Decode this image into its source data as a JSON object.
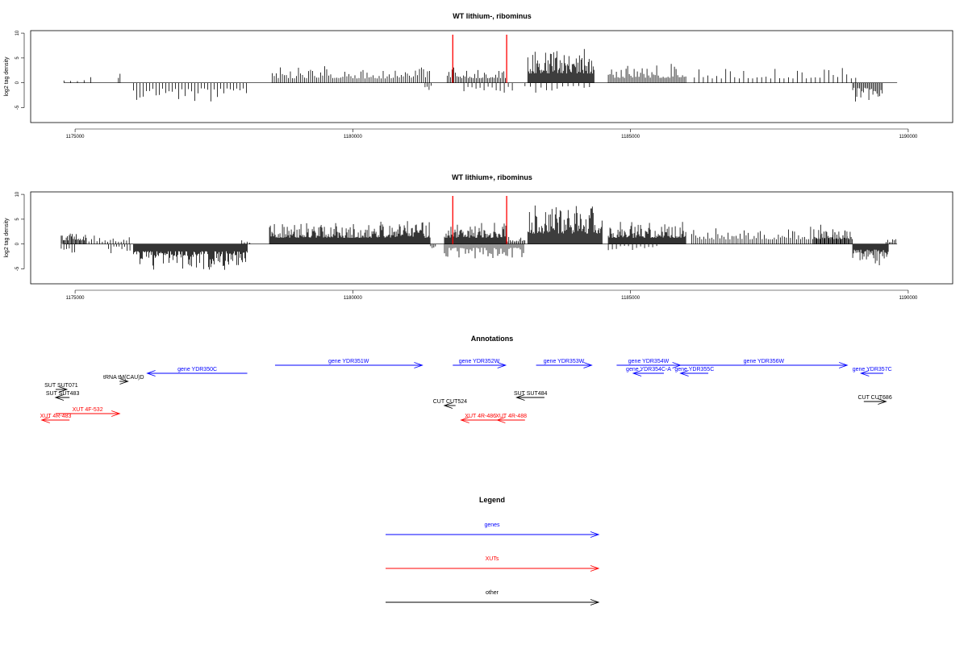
{
  "colors": {
    "genes": "#0000ff",
    "xuts": "#ff0000",
    "other": "#000000",
    "highlight": "#ff0000"
  },
  "chart_data": [
    {
      "type": "bar",
      "title": "WT lithium-, ribominus",
      "xlabel": "",
      "ylabel": "log2 tag density",
      "xlim": [
        1174200,
        1190800
      ],
      "ylim": [
        -8,
        10.5
      ],
      "x_ticks": [
        1175000,
        1180000,
        1185000,
        1190000
      ],
      "x_tick_labels": [
        "1175000",
        "1180000",
        "1185000",
        "1190000"
      ],
      "y_ticks": [
        -5,
        0,
        5,
        10
      ],
      "y_tick_labels": [
        "-5",
        "0",
        "5",
        "10"
      ],
      "highlight_lines_x": [
        1181800,
        1182770
      ],
      "segments": [
        {
          "start": 1174800,
          "end": 1175350,
          "strand": "+",
          "amp": 1.3,
          "density": 0.012
        },
        {
          "start": 1175780,
          "end": 1175830,
          "strand": "+",
          "amp": 3.8,
          "density": 0.05
        },
        {
          "start": 1176050,
          "end": 1178100,
          "strand": "-",
          "amp": 4.5,
          "density": 0.025
        },
        {
          "start": 1178550,
          "end": 1181400,
          "strand": "+",
          "amp": 3.5,
          "density": 0.04
        },
        {
          "start": 1181300,
          "end": 1181420,
          "strand": "-",
          "amp": 2.2,
          "density": 0.04
        },
        {
          "start": 1181700,
          "end": 1182750,
          "strand": "+",
          "amp": 3.8,
          "density": 0.05
        },
        {
          "start": 1182000,
          "end": 1182900,
          "strand": "-",
          "amp": 2.5,
          "density": 0.02
        },
        {
          "start": 1183150,
          "end": 1184350,
          "strand": "+",
          "amp": 7.5,
          "density": 0.16
        },
        {
          "start": 1183100,
          "end": 1184300,
          "strand": "-",
          "amp": 2.5,
          "density": 0.015
        },
        {
          "start": 1184600,
          "end": 1186000,
          "strand": "+",
          "amp": 4.0,
          "density": 0.05
        },
        {
          "start": 1186150,
          "end": 1189100,
          "strand": "+",
          "amp": 3.5,
          "density": 0.018
        },
        {
          "start": 1189000,
          "end": 1189550,
          "strand": "-",
          "amp": 4.0,
          "density": 0.06
        }
      ]
    },
    {
      "type": "bar",
      "title": "WT lithium+, ribominus",
      "xlabel": "",
      "ylabel": "log2 tag density",
      "xlim": [
        1174200,
        1190800
      ],
      "ylim": [
        -8,
        10.5
      ],
      "x_ticks": [
        1175000,
        1180000,
        1185000,
        1190000
      ],
      "x_tick_labels": [
        "1175000",
        "1180000",
        "1185000",
        "1190000"
      ],
      "y_ticks": [
        -5,
        0,
        5,
        10
      ],
      "y_tick_labels": [
        "-5",
        "0",
        "5",
        "10"
      ],
      "highlight_lines_x": [
        1181800,
        1182770
      ],
      "segments": [
        {
          "start": 1174750,
          "end": 1175200,
          "strand": "+",
          "amp": 3.0,
          "density": 0.08
        },
        {
          "start": 1174750,
          "end": 1175000,
          "strand": "-",
          "amp": 3.5,
          "density": 0.03
        },
        {
          "start": 1175200,
          "end": 1176000,
          "strand": "+",
          "amp": 1.8,
          "density": 0.03
        },
        {
          "start": 1175600,
          "end": 1176000,
          "strand": "-",
          "amp": 2.0,
          "density": 0.03
        },
        {
          "start": 1176050,
          "end": 1178100,
          "strand": "-",
          "amp": 5.8,
          "density": 0.25
        },
        {
          "start": 1178000,
          "end": 1178150,
          "strand": "+",
          "amp": 1.0,
          "density": 0.03
        },
        {
          "start": 1178500,
          "end": 1181400,
          "strand": "+",
          "amp": 5.0,
          "density": 0.22
        },
        {
          "start": 1181400,
          "end": 1181500,
          "strand": "-",
          "amp": 1.5,
          "density": 0.05
        },
        {
          "start": 1181650,
          "end": 1182760,
          "strand": "+",
          "amp": 5.0,
          "density": 0.15
        },
        {
          "start": 1181650,
          "end": 1183100,
          "strand": "-",
          "amp": 3.0,
          "density": 0.05
        },
        {
          "start": 1182760,
          "end": 1183100,
          "strand": "+",
          "amp": 2.0,
          "density": 0.06
        },
        {
          "start": 1183150,
          "end": 1184500,
          "strand": "+",
          "amp": 8.5,
          "density": 0.3
        },
        {
          "start": 1184600,
          "end": 1186000,
          "strand": "+",
          "amp": 5.0,
          "density": 0.2
        },
        {
          "start": 1184600,
          "end": 1185500,
          "strand": "-",
          "amp": 1.5,
          "density": 0.02
        },
        {
          "start": 1186100,
          "end": 1188900,
          "strand": "+",
          "amp": 3.8,
          "density": 0.04
        },
        {
          "start": 1188300,
          "end": 1189000,
          "strand": "+",
          "amp": 4.0,
          "density": 0.08
        },
        {
          "start": 1189000,
          "end": 1189650,
          "strand": "-",
          "amp": 4.5,
          "density": 0.2
        },
        {
          "start": 1189600,
          "end": 1189800,
          "strand": "+",
          "amp": 1.5,
          "density": 0.05
        }
      ]
    }
  ],
  "annotations": {
    "title": "Annotations",
    "features": [
      {
        "label": "gene YDR350C",
        "start": 1176300,
        "end": 1178100,
        "strand": "-",
        "row": 1,
        "class": "genes"
      },
      {
        "label": "gene YDR351W",
        "start": 1178600,
        "end": 1181250,
        "strand": "+",
        "row": 0,
        "class": "genes"
      },
      {
        "label": "gene YDR352W",
        "start": 1181800,
        "end": 1182750,
        "strand": "+",
        "row": 0,
        "class": "genes"
      },
      {
        "label": "gene YDR353W",
        "start": 1183300,
        "end": 1184300,
        "strand": "+",
        "row": 0,
        "class": "genes"
      },
      {
        "label": "gene YDR354W",
        "start": 1184750,
        "end": 1185900,
        "strand": "+",
        "row": 0,
        "class": "genes"
      },
      {
        "label": "gene YDR354C-A",
        "start": 1185050,
        "end": 1185600,
        "strand": "-",
        "row": 1,
        "class": "genes"
      },
      {
        "label": "gene YDR355C",
        "start": 1185900,
        "end": 1186400,
        "strand": "-",
        "row": 1,
        "class": "genes"
      },
      {
        "label": "gene YDR356W",
        "start": 1185900,
        "end": 1188900,
        "strand": "+",
        "row": 0,
        "class": "genes"
      },
      {
        "label": "gene YDR357C",
        "start": 1189150,
        "end": 1189550,
        "strand": "-",
        "row": 1,
        "class": "genes"
      },
      {
        "label": "tRNA tM(CAU)D",
        "start": 1175800,
        "end": 1175950,
        "strand": "+",
        "row": 2,
        "class": "other"
      },
      {
        "label": "SUT SUT071",
        "start": 1174650,
        "end": 1174850,
        "strand": "+",
        "row": 3,
        "class": "other"
      },
      {
        "label": "SUT SUT483",
        "start": 1174650,
        "end": 1174900,
        "strand": "-",
        "row": 4,
        "class": "other"
      },
      {
        "label": "SUT SUT484",
        "start": 1182950,
        "end": 1183450,
        "strand": "-",
        "row": 4,
        "class": "other"
      },
      {
        "label": "CUT CUT524",
        "start": 1181650,
        "end": 1181850,
        "strand": "-",
        "row": 5,
        "class": "other"
      },
      {
        "label": "CUT CUT686",
        "start": 1189200,
        "end": 1189600,
        "strand": "+",
        "row": 4.5,
        "class": "other"
      },
      {
        "label": "XUT 4F-532",
        "start": 1174650,
        "end": 1175800,
        "strand": "+",
        "row": 6,
        "class": "xuts"
      },
      {
        "label": "XUT 4R-483",
        "start": 1174400,
        "end": 1174900,
        "strand": "-",
        "row": 6.8,
        "class": "xuts"
      },
      {
        "label": "XUT 4R-486",
        "start": 1181950,
        "end": 1182650,
        "strand": "-",
        "row": 6.8,
        "class": "xuts"
      },
      {
        "label": "XUT 4R-488",
        "start": 1182600,
        "end": 1183100,
        "strand": "-",
        "row": 6.8,
        "class": "xuts"
      }
    ]
  },
  "legend": {
    "title": "Legend",
    "entries": [
      {
        "label": "genes",
        "class": "genes"
      },
      {
        "label": "XUTs",
        "class": "xuts"
      },
      {
        "label": "other",
        "class": "other"
      }
    ]
  }
}
